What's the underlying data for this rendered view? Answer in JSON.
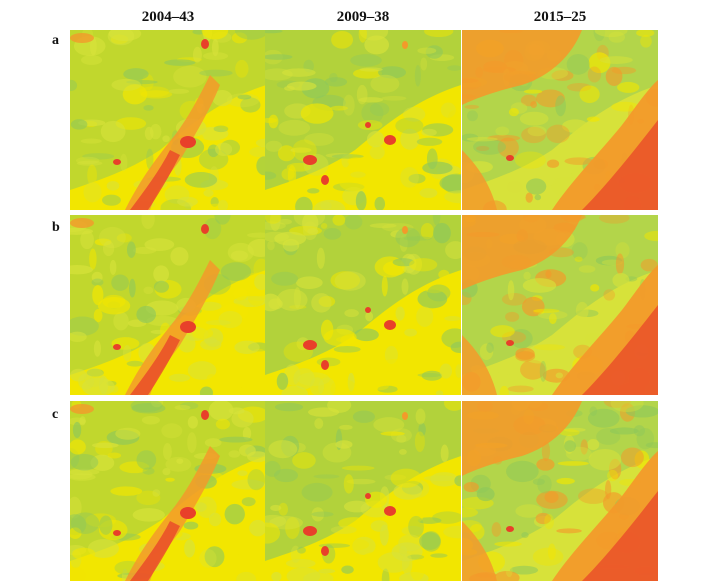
{
  "figure": {
    "columns": [
      "2004–43",
      "2009–38",
      "2015–25"
    ],
    "rows": [
      "a",
      "b",
      "c"
    ],
    "palette": {
      "yellow": "#f2e600",
      "lime": "#d7e23a",
      "green": "#8fc85a",
      "orange": "#f39a2a",
      "red": "#e8402a"
    }
  }
}
